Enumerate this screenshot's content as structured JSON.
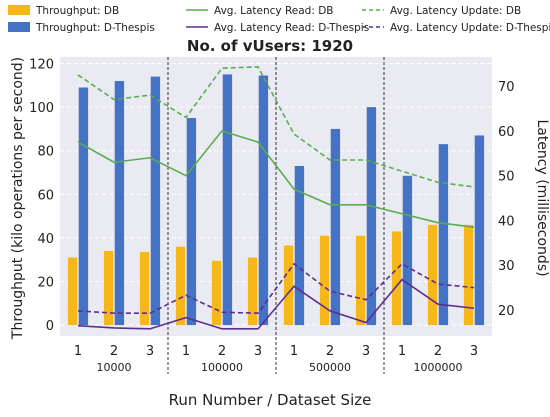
{
  "chart_data": {
    "type": "bar",
    "title": "No. of vUsers: 1920",
    "xlabel": "Run Number / Dataset Size",
    "ylabel": "Throughput (kilo operations per second)",
    "y2label": "Latency (milliseconds)",
    "ylim": [
      -5,
      123
    ],
    "y2lim": [
      14.2,
      76.5
    ],
    "yticks": [
      0,
      20,
      40,
      60,
      80,
      100,
      120
    ],
    "y2ticks": [
      20,
      30,
      40,
      50,
      60,
      70
    ],
    "grid": "dashed white horizontal lines",
    "legend_position": "top",
    "groups": [
      {
        "label": "10000",
        "runs": [
          "1",
          "2",
          "3"
        ]
      },
      {
        "label": "100000",
        "runs": [
          "1",
          "2",
          "3"
        ]
      },
      {
        "label": "500000",
        "runs": [
          "1",
          "2",
          "3"
        ]
      },
      {
        "label": "1000000",
        "runs": [
          "1",
          "2",
          "3"
        ]
      }
    ],
    "bar_series": [
      {
        "name": "Throughput: DB",
        "color": "#f7b719",
        "values": [
          31,
          34,
          33.5,
          36,
          29.5,
          31,
          36.5,
          41,
          41,
          43,
          46,
          46
        ]
      },
      {
        "name": "Throughput: D-Thespis",
        "color": "#4472c4",
        "values": [
          109,
          112,
          114,
          95,
          115,
          114.5,
          73,
          90,
          100,
          68.5,
          83,
          87
        ]
      }
    ],
    "line_series": [
      {
        "name": "Avg. Latency Read: DB",
        "color": "#5aad4e",
        "dash": "solid",
        "values": [
          57.5,
          53,
          54,
          50,
          60,
          57.5,
          47,
          43.5,
          43.5,
          41.5,
          39.5,
          38.5
        ]
      },
      {
        "name": "Avg. Latency Read: D-Thespis",
        "color": "#5e2d91",
        "dash": "solid",
        "values": [
          16.5,
          16,
          15.8,
          18.3,
          15.8,
          15.8,
          25.3,
          19.8,
          17.2,
          26.8,
          21.3,
          20.4
        ]
      },
      {
        "name": "Avg. Latency Update: DB",
        "color": "#5aad4e",
        "dash": "dashed",
        "values": [
          72.5,
          67,
          68,
          63,
          74,
          74.3,
          59.3,
          53.5,
          53.5,
          51,
          48.5,
          47.5
        ]
      },
      {
        "name": "Avg. Latency Update: D-Thespis",
        "color": "#5e2d91",
        "dash": "dashed",
        "values": [
          19.8,
          19.3,
          19.3,
          23.3,
          19.5,
          19.3,
          30.3,
          24.2,
          22.3,
          30.3,
          25.8,
          25
        ]
      }
    ]
  }
}
